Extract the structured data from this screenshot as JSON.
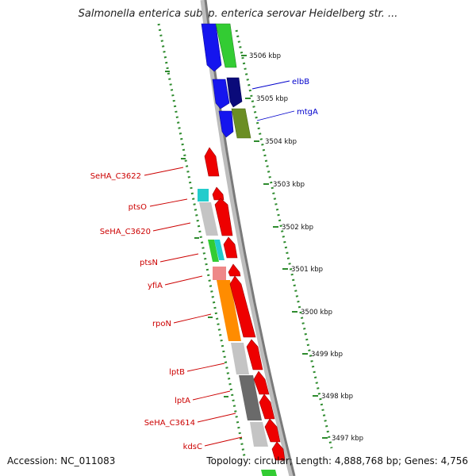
{
  "title": "Salmonella enterica subsp. enterica serovar Heidelberg str. ...",
  "accession_text": "Accession: NC_011083",
  "summary_text": "Topology: circular; Length: 4,888,768 bp; Genes: 4,756",
  "colors": {
    "forward": "#ee0000",
    "reverse": "#1515ee",
    "gene_label_red": "#cc0000",
    "gene_label_blue": "#0000cc",
    "ruler_tick": "#2e8b2e",
    "backbone": "#888888"
  },
  "ruler": {
    "unit": "kbp",
    "labels": [
      "3506 kbp",
      "3505 kbp",
      "3504 kbp",
      "3503 kbp",
      "3502 kbp",
      "3501 kbp",
      "3500 kbp",
      "3499 kbp",
      "3498 kbp",
      "3497 kbp"
    ]
  },
  "gene_labels": [
    {
      "text": "elbB",
      "color": "blue"
    },
    {
      "text": "mtgA",
      "color": "blue"
    },
    {
      "text": "SeHA_C3622",
      "color": "red"
    },
    {
      "text": "ptsO",
      "color": "red"
    },
    {
      "text": "SeHA_C3620",
      "color": "red"
    },
    {
      "text": "ptsN",
      "color": "red"
    },
    {
      "text": "yfiA",
      "color": "red"
    },
    {
      "text": "rpoN",
      "color": "red"
    },
    {
      "text": "lptB",
      "color": "red"
    },
    {
      "text": "lptA",
      "color": "red"
    },
    {
      "text": "SeHA_C3614",
      "color": "red"
    },
    {
      "text": "kdsC",
      "color": "red"
    }
  ]
}
